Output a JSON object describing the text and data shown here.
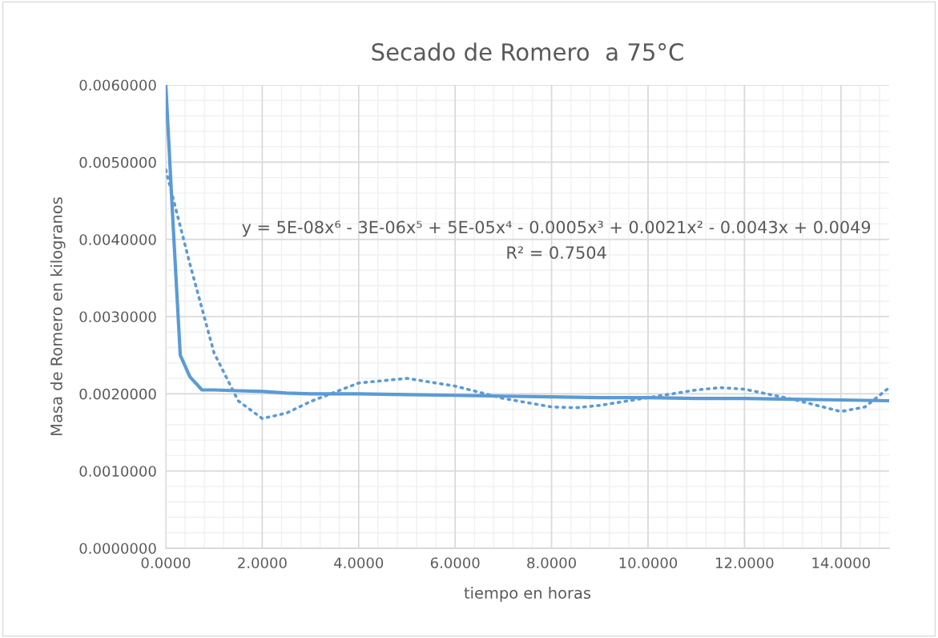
{
  "chart_data": {
    "type": "line",
    "title": "Secado de Romero  a 75°C",
    "xlabel": "tiempo en horas",
    "ylabel": "Masa de Romero en kilogranos",
    "series": [
      {
        "color": "#5b9bd5",
        "line_style": "solid",
        "x": [
          0,
          0.15,
          0.3,
          0.5,
          0.75,
          1.0,
          1.5,
          2.0,
          2.5,
          3.0,
          4.0,
          5.0,
          6.0,
          7.0,
          8.0,
          9.0,
          10.0,
          11.0,
          12.0,
          13.0,
          14.0,
          15.0
        ],
        "values": [
          0.006,
          0.0042,
          0.0025,
          0.00222,
          0.00205,
          0.00205,
          0.00204,
          0.00203,
          0.00201,
          0.002,
          0.002,
          0.00199,
          0.00198,
          0.00197,
          0.00196,
          0.00195,
          0.00195,
          0.00194,
          0.00194,
          0.00193,
          0.00192,
          0.00191
        ]
      },
      {
        "color": "#5b9bd5",
        "line_style": "dotted",
        "x": [
          0,
          0.5,
          1.0,
          1.5,
          2.0,
          2.5,
          3.0,
          4.0,
          5.0,
          6.0,
          7.0,
          8.0,
          8.5,
          9.0,
          10.0,
          11.0,
          11.5,
          12.0,
          13.0,
          14.0,
          14.5,
          15.0
        ],
        "values": [
          0.0049,
          0.00368,
          0.00253,
          0.00191,
          0.00168,
          0.00175,
          0.0019,
          0.00214,
          0.0022,
          0.0021,
          0.00194,
          0.00183,
          0.00182,
          0.00185,
          0.00195,
          0.00205,
          0.00208,
          0.00206,
          0.00193,
          0.00177,
          0.00183,
          0.00208
        ]
      }
    ],
    "xlim": [
      0,
      15
    ],
    "xticks": [
      {
        "value": 0,
        "label": "0.0000"
      },
      {
        "value": 2,
        "label": "2.0000"
      },
      {
        "value": 4,
        "label": "4.0000"
      },
      {
        "value": 6,
        "label": "6.0000"
      },
      {
        "value": 8,
        "label": "8.0000"
      },
      {
        "value": 10,
        "label": "10.0000"
      },
      {
        "value": 12,
        "label": "12.0000"
      },
      {
        "value": 14,
        "label": "14.0000"
      }
    ],
    "ylim": [
      0,
      0.006
    ],
    "yticks": [
      {
        "value": 0,
        "label": "0.0000000"
      },
      {
        "value": 0.001,
        "label": "0.0010000"
      },
      {
        "value": 0.002,
        "label": "0.0020000"
      },
      {
        "value": 0.003,
        "label": "0.0030000"
      },
      {
        "value": 0.004,
        "label": "0.0040000"
      },
      {
        "value": 0.005,
        "label": "0.0050000"
      },
      {
        "value": 0.006,
        "label": "0.0060000"
      }
    ],
    "grid": true,
    "legend": false,
    "annotations": [
      "y = 5E-08x⁶ - 3E-06x⁵ + 5E-05x⁴ - 0.0005x³ + 0.0021x² - 0.0043x + 0.0049",
      "R² = 0.7504"
    ]
  }
}
